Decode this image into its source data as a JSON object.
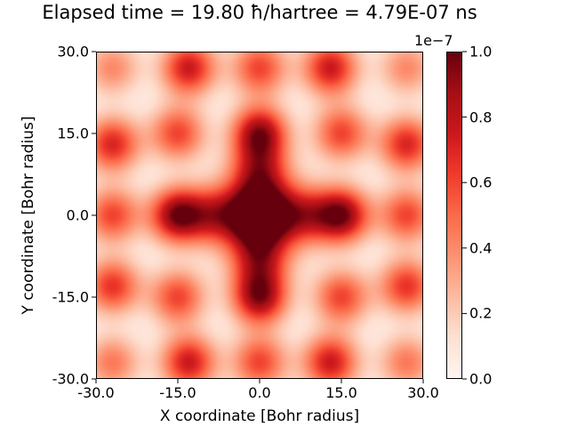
{
  "chart_data": {
    "type": "heatmap",
    "title": "Elapsed time = 19.80 ħ/hartree = 4.79E-07 ns",
    "xlabel": "X coordinate [Bohr radius]",
    "ylabel": "Y coordinate [Bohr radius]",
    "xlim": [
      -30.0,
      30.0
    ],
    "ylim": [
      -30.0,
      30.0
    ],
    "x_ticks": [
      "-30.0",
      "-15.0",
      "0.0",
      "15.0",
      "30.0"
    ],
    "y_ticks": [
      "-30.0",
      "-15.0",
      "0.0",
      "15.0",
      "30.0"
    ],
    "colormap": "Reds",
    "colorbar": {
      "range": [
        0.0,
        1.0
      ],
      "scale_label": "1e−7",
      "ticks": [
        "0.0",
        "0.2",
        "0.4",
        "0.6",
        "0.8",
        "1.0"
      ]
    },
    "peaks": [
      {
        "x": 0,
        "y": 0,
        "value": 0.95
      },
      {
        "x": 0,
        "y": 15,
        "value": 0.9
      },
      {
        "x": 0,
        "y": -15,
        "value": 0.9
      },
      {
        "x": 15,
        "y": 0,
        "value": 0.95
      },
      {
        "x": -15,
        "y": 0,
        "value": 0.95
      },
      {
        "x": 15,
        "y": 15,
        "value": 0.6
      },
      {
        "x": -15,
        "y": 15,
        "value": 0.6
      },
      {
        "x": 15,
        "y": -15,
        "value": 0.6
      },
      {
        "x": -15,
        "y": -15,
        "value": 0.6
      },
      {
        "x": 0,
        "y": 27,
        "value": 0.6
      },
      {
        "x": 0,
        "y": -27,
        "value": 0.6
      },
      {
        "x": 27,
        "y": 0,
        "value": 0.6
      },
      {
        "x": -27,
        "y": 0,
        "value": 0.6
      },
      {
        "x": 13,
        "y": 27,
        "value": 0.75
      },
      {
        "x": -13,
        "y": 27,
        "value": 0.75
      },
      {
        "x": 13,
        "y": -27,
        "value": 0.75
      },
      {
        "x": -13,
        "y": -27,
        "value": 0.75
      },
      {
        "x": 27,
        "y": 13,
        "value": 0.7
      },
      {
        "x": -27,
        "y": 13,
        "value": 0.7
      },
      {
        "x": 27,
        "y": -13,
        "value": 0.65
      },
      {
        "x": -27,
        "y": -13,
        "value": 0.65
      },
      {
        "x": 27,
        "y": 27,
        "value": 0.4
      },
      {
        "x": -27,
        "y": 27,
        "value": 0.4
      },
      {
        "x": 27,
        "y": -27,
        "value": 0.45
      },
      {
        "x": -27,
        "y": -27,
        "value": 0.45
      },
      {
        "x": 0,
        "y": 8,
        "value": 0.55
      },
      {
        "x": 0,
        "y": -8,
        "value": 0.55
      },
      {
        "x": 8,
        "y": 0,
        "value": 0.5
      },
      {
        "x": -8,
        "y": 0,
        "value": 0.5
      }
    ]
  }
}
